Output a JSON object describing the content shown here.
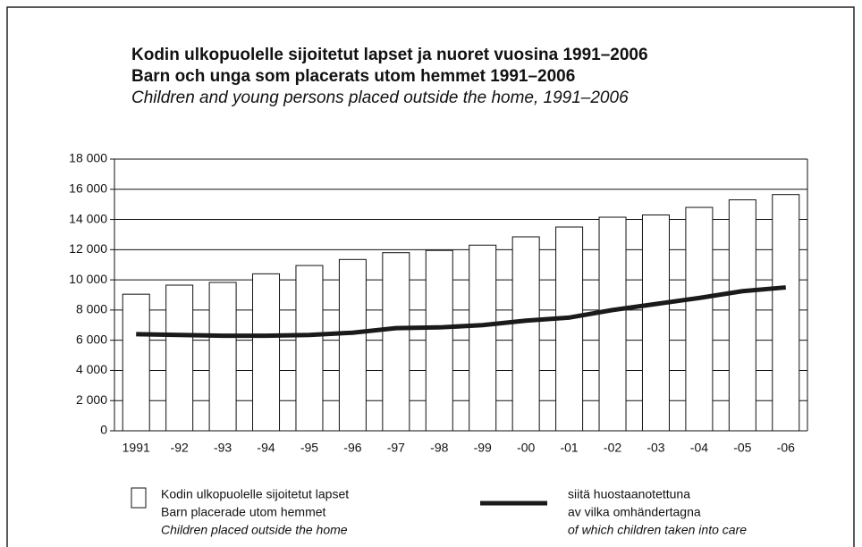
{
  "chart_data": {
    "type": "bar",
    "title_lines": [
      "Kodin ulkopuolelle sijoitetut lapset ja nuoret vuosina 1991–2006",
      "Barn och unga som placerats utom hemmet 1991–2006",
      "Children and young persons placed outside the home, 1991–2006"
    ],
    "categories": [
      "1991",
      "-92",
      "-93",
      "-94",
      "-95",
      "-96",
      "-97",
      "-98",
      "-99",
      "-00",
      "-01",
      "-02",
      "-03",
      "-04",
      "-05",
      "-06"
    ],
    "series": [
      {
        "name": "Kodin ulkopuolelle sijoitetut lapset",
        "name_lines": [
          "Barn placerade utom hemmet",
          "Children placed outside the home"
        ],
        "type": "bar",
        "color": "#ffffff",
        "values": [
          9050,
          9650,
          9830,
          10400,
          10950,
          11350,
          11800,
          11950,
          12300,
          12850,
          13500,
          14150,
          14300,
          14800,
          15300,
          15650
        ]
      },
      {
        "name": "siitä huostaanotettuna",
        "name_lines": [
          "av vilka omhändertagna",
          "of which children taken into care"
        ],
        "type": "line",
        "color": "#1a1a1a",
        "values": [
          6400,
          6350,
          6300,
          6300,
          6350,
          6500,
          6800,
          6850,
          7000,
          7300,
          7500,
          8000,
          8400,
          8800,
          9250,
          9500
        ]
      }
    ],
    "ylim": [
      0,
      18000
    ],
    "yticks": [
      0,
      {
        "value": 2000,
        "label": "2 000"
      },
      {
        "value": 4000,
        "label": "4 000"
      },
      {
        "value": 6000,
        "label": "6 000"
      },
      {
        "value": 8000,
        "label": "8 000"
      },
      {
        "value": 10000,
        "label": "10 000"
      },
      {
        "value": 12000,
        "label": "12 000"
      },
      {
        "value": 14000,
        "label": "14 000"
      },
      {
        "value": 16000,
        "label": "16 000"
      },
      {
        "value": 18000,
        "label": "18 000"
      }
    ],
    "grid": true
  }
}
